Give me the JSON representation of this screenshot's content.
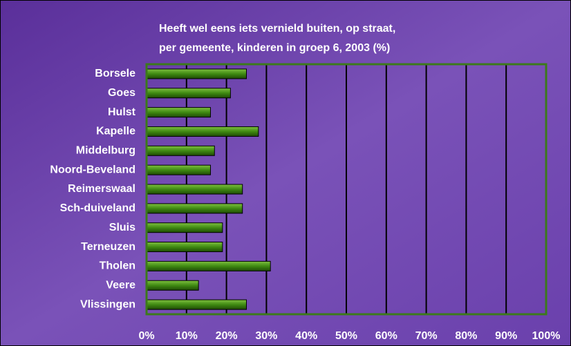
{
  "chart_data": {
    "type": "bar",
    "orientation": "horizontal",
    "title": [
      "Heeft wel eens iets vernield buiten, op straat,",
      "per gemeente, kinderen in groep 6, 2003 (%)"
    ],
    "categories": [
      "Borsele",
      "Goes",
      "Hulst",
      "Kapelle",
      "Middelburg",
      "Noord-Beveland",
      "Reimerswaal",
      "Sch-duiveland",
      "Sluis",
      "Terneuzen",
      "Tholen",
      "Veere",
      "Vlissingen"
    ],
    "values": [
      25,
      21,
      16,
      28,
      17,
      16,
      24,
      24,
      19,
      19,
      31,
      13,
      25
    ],
    "color": "#3f8a12",
    "xlim": [
      0,
      100
    ],
    "xticks": [
      {
        "value": 0,
        "label": "0%"
      },
      {
        "value": 10,
        "label": "10%"
      },
      {
        "value": 20,
        "label": "20%"
      },
      {
        "value": 30,
        "label": "30%"
      },
      {
        "value": 40,
        "label": "40%"
      },
      {
        "value": 50,
        "label": "50%"
      },
      {
        "value": 60,
        "label": "60%"
      },
      {
        "value": 70,
        "label": "70%"
      },
      {
        "value": 80,
        "label": "80%"
      },
      {
        "value": 90,
        "label": "90%"
      },
      {
        "value": 100,
        "label": "100%"
      }
    ],
    "grid": true
  }
}
